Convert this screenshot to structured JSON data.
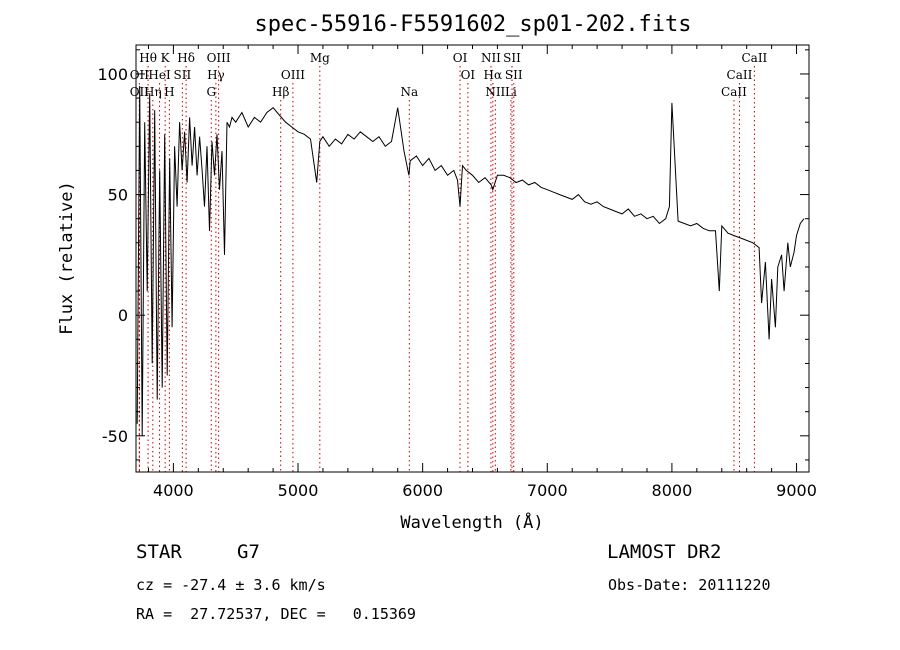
{
  "chart_data": {
    "type": "line",
    "title": "spec-55916-F5591602_sp01-202.fits",
    "xlabel": "Wavelength (Å)",
    "ylabel": "Flux (relative)",
    "xlim": [
      3700,
      9100
    ],
    "ylim": [
      -65,
      112
    ],
    "xticks": [
      4000,
      5000,
      6000,
      7000,
      8000,
      9000
    ],
    "yticks": [
      -50,
      0,
      50,
      100
    ],
    "grid": false,
    "line_color": "#000000",
    "marker_color": "#cc0000",
    "spectrum": {
      "x": [
        3710,
        3730,
        3750,
        3770,
        3790,
        3810,
        3830,
        3850,
        3870,
        3890,
        3910,
        3930,
        3950,
        3970,
        3990,
        4010,
        4030,
        4050,
        4070,
        4090,
        4110,
        4130,
        4150,
        4170,
        4190,
        4210,
        4230,
        4250,
        4270,
        4290,
        4310,
        4330,
        4350,
        4370,
        4390,
        4410,
        4430,
        4450,
        4470,
        4500,
        4550,
        4600,
        4650,
        4700,
        4750,
        4800,
        4850,
        4900,
        4950,
        5000,
        5050,
        5100,
        5150,
        5175,
        5200,
        5250,
        5300,
        5350,
        5400,
        5450,
        5500,
        5550,
        5600,
        5650,
        5700,
        5750,
        5800,
        5850,
        5890,
        5900,
        5950,
        6000,
        6050,
        6100,
        6150,
        6200,
        6250,
        6280,
        6300,
        6320,
        6350,
        6400,
        6450,
        6500,
        6550,
        6563,
        6600,
        6650,
        6700,
        6750,
        6800,
        6850,
        6900,
        6950,
        7000,
        7050,
        7100,
        7150,
        7200,
        7250,
        7300,
        7350,
        7400,
        7450,
        7500,
        7550,
        7600,
        7650,
        7700,
        7750,
        7800,
        7850,
        7900,
        7950,
        7980,
        8000,
        8050,
        8100,
        8150,
        8200,
        8250,
        8300,
        8350,
        8380,
        8400,
        8450,
        8500,
        8550,
        8600,
        8650,
        8700,
        8720,
        8750,
        8780,
        8800,
        8830,
        8850,
        8880,
        8900,
        8930,
        8950,
        8980,
        9000,
        9030,
        9060
      ],
      "y": [
        -45,
        95,
        -50,
        80,
        10,
        92,
        -20,
        85,
        -35,
        60,
        -30,
        75,
        -25,
        65,
        -5,
        70,
        45,
        80,
        60,
        76,
        55,
        82,
        62,
        78,
        58,
        74,
        60,
        45,
        70,
        35,
        72,
        58,
        75,
        52,
        68,
        25,
        80,
        78,
        82,
        80,
        84,
        78,
        82,
        80,
        84,
        86,
        83,
        80,
        78,
        76,
        75,
        73,
        55,
        72,
        74,
        70,
        73,
        71,
        75,
        73,
        76,
        74,
        72,
        74,
        70,
        72,
        86,
        68,
        58,
        64,
        66,
        62,
        65,
        60,
        62,
        58,
        60,
        56,
        45,
        62,
        60,
        58,
        55,
        57,
        54,
        52,
        58,
        58,
        57,
        55,
        56,
        54,
        55,
        53,
        52,
        51,
        50,
        49,
        48,
        50,
        47,
        46,
        47,
        45,
        44,
        43,
        42,
        44,
        41,
        42,
        40,
        41,
        38,
        40,
        45,
        88,
        39,
        38,
        37,
        38,
        36,
        35,
        35,
        10,
        37,
        34,
        33,
        32,
        31,
        30,
        28,
        5,
        22,
        -10,
        15,
        -5,
        20,
        25,
        10,
        30,
        20,
        26,
        33,
        38,
        40
      ]
    },
    "lines": [
      {
        "label": "Hθ",
        "x": 3797,
        "row": 1
      },
      {
        "label": "K",
        "x": 3934,
        "row": 1
      },
      {
        "label": "Hδ",
        "x": 4102,
        "row": 1
      },
      {
        "label": "OIII",
        "x": 4363,
        "row": 1
      },
      {
        "label": "Mg",
        "x": 5175,
        "row": 1
      },
      {
        "label": "OI",
        "x": 6300,
        "row": 1
      },
      {
        "label": "NII",
        "x": 6548,
        "row": 1
      },
      {
        "label": "SII",
        "x": 6717,
        "row": 1
      },
      {
        "label": "CaII",
        "x": 8662,
        "row": 1
      },
      {
        "label": "OII",
        "x": 3727,
        "row": 2
      },
      {
        "label": "HeI",
        "x": 3889,
        "row": 2
      },
      {
        "label": "SII",
        "x": 4072,
        "row": 2
      },
      {
        "label": "Hγ",
        "x": 4341,
        "row": 2
      },
      {
        "label": "OIII",
        "x": 4959,
        "row": 2
      },
      {
        "label": "OI",
        "x": 6363,
        "row": 2
      },
      {
        "label": "Hα",
        "x": 6563,
        "row": 2
      },
      {
        "label": "SII",
        "x": 6731,
        "row": 2
      },
      {
        "label": "CaII",
        "x": 8542,
        "row": 2
      },
      {
        "label": "OII",
        "x": 3727,
        "row": 3
      },
      {
        "label": "Hη",
        "x": 3835,
        "row": 3
      },
      {
        "label": "H",
        "x": 3968,
        "row": 3
      },
      {
        "label": "G",
        "x": 4304,
        "row": 3
      },
      {
        "label": "Hβ",
        "x": 4861,
        "row": 3
      },
      {
        "label": "Na",
        "x": 5893,
        "row": 3
      },
      {
        "label": "NII",
        "x": 6583,
        "row": 3
      },
      {
        "label": "Li",
        "x": 6708,
        "row": 3
      },
      {
        "label": "CaII",
        "x": 8498,
        "row": 3
      }
    ]
  },
  "footer": {
    "object_class": "STAR",
    "subclass": "G7",
    "survey": "LAMOST DR2",
    "cz_line": "cz = -27.4 ± 3.6 km/s",
    "obs_date": "Obs-Date: 20111220",
    "coords": "RA =  27.72537, DEC =   0.15369"
  }
}
